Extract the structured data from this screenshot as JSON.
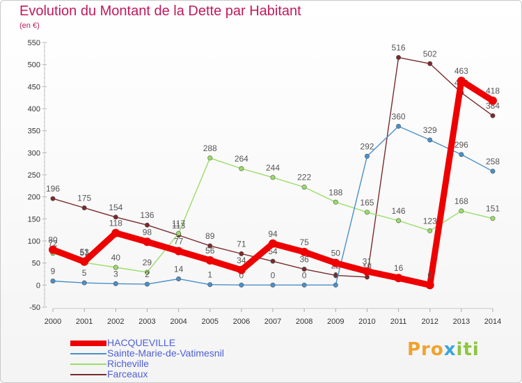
{
  "title": "Evolution du Montant de la Dette par Habitant",
  "subtitle": "(en €)",
  "logo": {
    "part1": "Pro",
    "part2": "x",
    "part3": "iti"
  },
  "legend": [
    {
      "label": "HACQUEVILLE",
      "color": "#ee0000"
    },
    {
      "label": "Sainte-Marie-de-Vatimesnil",
      "color": "#4a8fc9"
    },
    {
      "label": "Richeville",
      "color": "#99dd66"
    },
    {
      "label": "Farceaux",
      "color": "#7a2a2a"
    }
  ],
  "chart_data": {
    "type": "line",
    "title": "Evolution du Montant de la Dette par Habitant",
    "ylabel": "(en €)",
    "x": [
      "2000",
      "2001",
      "2002",
      "2003",
      "2004",
      "2005",
      "2006",
      "2007",
      "2008",
      "2009",
      "2010",
      "2011",
      "2012",
      "2013",
      "2014"
    ],
    "ylim": [
      -50,
      550
    ],
    "yticks": [
      -50,
      0,
      50,
      100,
      150,
      200,
      250,
      300,
      350,
      400,
      450,
      500,
      550
    ],
    "grid": false,
    "legend_position": "bottom-left",
    "series": [
      {
        "name": "Farceaux",
        "color": "#7a2a2a",
        "values": [
          196,
          175,
          154,
          136,
          113,
          89,
          71,
          54,
          36,
          22,
          18,
          516,
          502,
          436,
          384
        ],
        "labels": [
          "196",
          "175",
          "154",
          "136",
          "113",
          "89",
          "71",
          "54",
          "36",
          "22",
          "18",
          "516",
          "502",
          "436",
          "384"
        ]
      },
      {
        "name": "Richeville",
        "color": "#99dd66",
        "values": [
          72,
          51,
          40,
          29,
          117,
          288,
          264,
          244,
          222,
          188,
          165,
          146,
          123,
          168,
          151
        ],
        "labels": [
          "72",
          "51",
          "40",
          "29",
          "117",
          "288",
          "264",
          "244",
          "222",
          "188",
          "165",
          "146",
          "123",
          "168",
          "151"
        ]
      },
      {
        "name": "Sainte-Marie-de-Vatimesnil",
        "color": "#4a8fc9",
        "values": [
          9,
          5,
          3,
          2,
          14,
          1,
          0,
          0,
          0,
          0,
          292,
          360,
          329,
          296,
          258
        ],
        "labels": [
          "9",
          "5",
          "3",
          "2",
          "14",
          "1",
          "0",
          "0",
          "0",
          "0",
          "292",
          "360",
          "329",
          "296",
          "258"
        ]
      },
      {
        "name": "HACQUEVILLE",
        "color": "#ee0000",
        "values": [
          80,
          53,
          118,
          98,
          77,
          56,
          34,
          94,
          75,
          50,
          31,
          16,
          0,
          463,
          418
        ],
        "labels": [
          "80",
          "53",
          "118",
          "98",
          "77",
          "56",
          "34",
          "94",
          "75",
          "50",
          "31",
          "16",
          "0",
          "463",
          "418"
        ]
      }
    ]
  }
}
